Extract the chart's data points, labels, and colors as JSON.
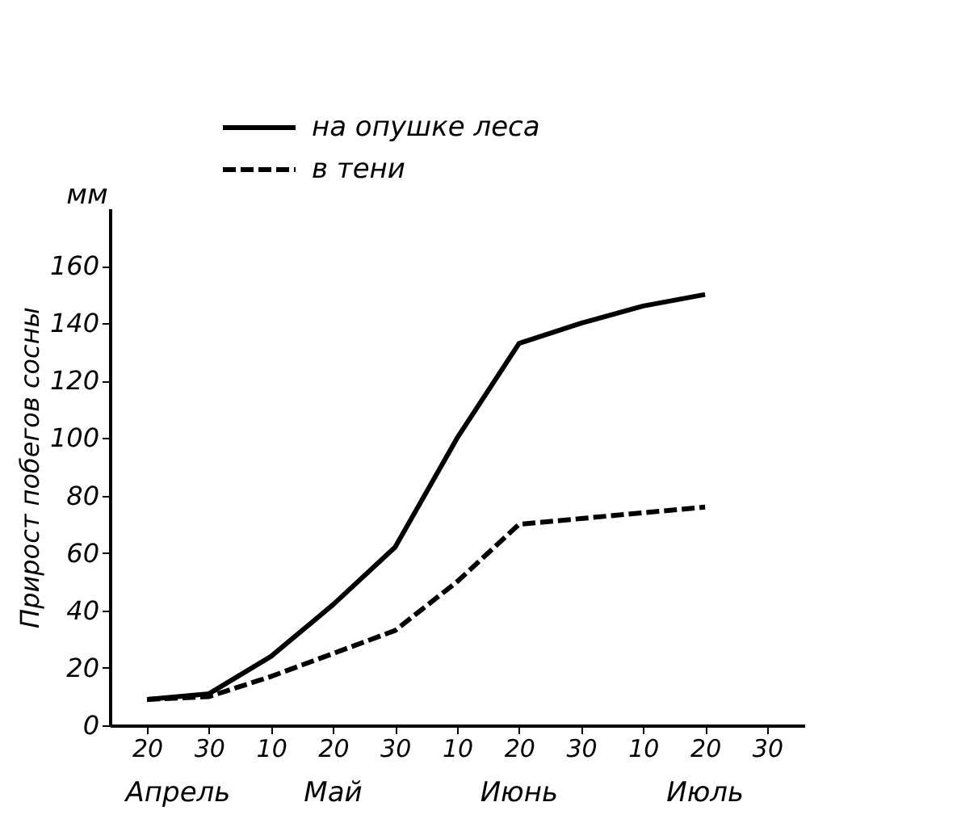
{
  "chart_data": {
    "type": "line",
    "ylabel": "Прирост побегов сосны",
    "categories": [
      "20",
      "30",
      "10",
      "20",
      "30",
      "10",
      "20",
      "30",
      "10",
      "20",
      "30"
    ],
    "series": [
      {
        "name": "на опушке леса",
        "color": "#000000",
        "line_style": "solid",
        "values": [
          9,
          11,
          24,
          42,
          62,
          100,
          133,
          140,
          146,
          150,
          null
        ]
      },
      {
        "name": "в тени",
        "color": "#000000",
        "line_style": "dashed",
        "values": [
          9,
          10,
          17,
          25,
          33,
          50,
          70,
          72,
          74,
          76,
          null
        ]
      }
    ],
    "ylim": [
      0,
      180
    ],
    "yticks": [
      0,
      20,
      40,
      60,
      80,
      100,
      120,
      140,
      160
    ],
    "annotations": [
      "мм",
      "Апрель",
      "Май",
      "Июнь",
      "Июль"
    ],
    "legend": "top",
    "grid": false,
    "marker": "none"
  }
}
